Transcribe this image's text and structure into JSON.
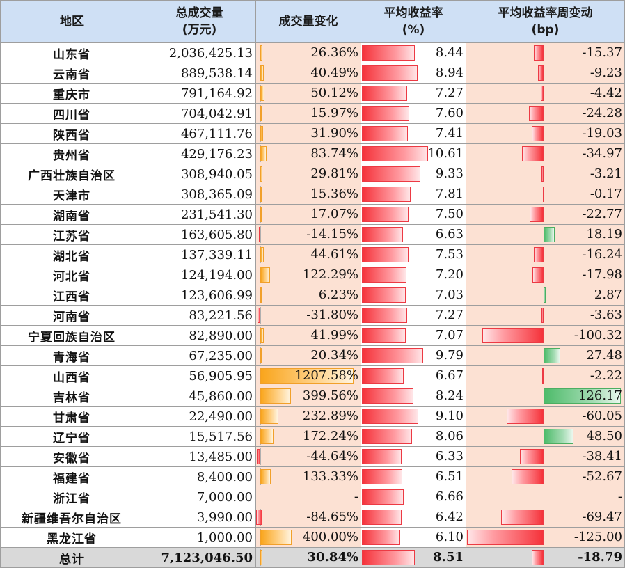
{
  "headers": {
    "region": "地区",
    "volume_line1": "总成交量",
    "volume_line2": "(万元)",
    "change": "成交量变化",
    "yield_line1": "平均收益率",
    "yield_line2": "(%)",
    "bp_line1": "平均收益率周变动",
    "bp_line2": "(bp)"
  },
  "colors": {
    "header_bg": "#cfe0f5",
    "row_bg": "#fce1d3",
    "orange_bar": "#f9a51c",
    "red_bar": "#f5323a",
    "green_bar": "#4dbb6a",
    "total_bg": "#d9d9d9"
  },
  "rows": [
    {
      "region": "山东省",
      "volume": "2,036,425.13",
      "change": "26.36%",
      "change_val": 26.36,
      "yield": "8.44",
      "yield_val": 8.44,
      "bp": "-15.37",
      "bp_val": -15.37
    },
    {
      "region": "云南省",
      "volume": "889,538.14",
      "change": "40.49%",
      "change_val": 40.49,
      "yield": "8.94",
      "yield_val": 8.94,
      "bp": "-9.23",
      "bp_val": -9.23
    },
    {
      "region": "重庆市",
      "volume": "791,164.92",
      "change": "50.12%",
      "change_val": 50.12,
      "yield": "7.27",
      "yield_val": 7.27,
      "bp": "-4.42",
      "bp_val": -4.42
    },
    {
      "region": "四川省",
      "volume": "704,042.91",
      "change": "15.97%",
      "change_val": 15.97,
      "yield": "7.60",
      "yield_val": 7.6,
      "bp": "-24.28",
      "bp_val": -24.28
    },
    {
      "region": "陕西省",
      "volume": "467,111.76",
      "change": "31.90%",
      "change_val": 31.9,
      "yield": "7.41",
      "yield_val": 7.41,
      "bp": "-19.03",
      "bp_val": -19.03
    },
    {
      "region": "贵州省",
      "volume": "429,176.23",
      "change": "83.74%",
      "change_val": 83.74,
      "yield": "10.61",
      "yield_val": 10.61,
      "bp": "-34.97",
      "bp_val": -34.97
    },
    {
      "region": "广西壮族自治区",
      "volume": "308,940.05",
      "change": "29.81%",
      "change_val": 29.81,
      "yield": "9.33",
      "yield_val": 9.33,
      "bp": "-3.21",
      "bp_val": -3.21
    },
    {
      "region": "天津市",
      "volume": "308,365.09",
      "change": "15.36%",
      "change_val": 15.36,
      "yield": "7.81",
      "yield_val": 7.81,
      "bp": "-0.17",
      "bp_val": -0.17
    },
    {
      "region": "湖南省",
      "volume": "231,541.30",
      "change": "17.07%",
      "change_val": 17.07,
      "yield": "7.50",
      "yield_val": 7.5,
      "bp": "-22.77",
      "bp_val": -22.77
    },
    {
      "region": "江苏省",
      "volume": "163,605.80",
      "change": "-14.15%",
      "change_val": -14.15,
      "yield": "6.63",
      "yield_val": 6.63,
      "bp": "18.19",
      "bp_val": 18.19
    },
    {
      "region": "湖北省",
      "volume": "137,339.11",
      "change": "44.61%",
      "change_val": 44.61,
      "yield": "7.53",
      "yield_val": 7.53,
      "bp": "-16.24",
      "bp_val": -16.24
    },
    {
      "region": "河北省",
      "volume": "124,194.00",
      "change": "122.29%",
      "change_val": 122.29,
      "yield": "7.20",
      "yield_val": 7.2,
      "bp": "-17.98",
      "bp_val": -17.98
    },
    {
      "region": "江西省",
      "volume": "123,606.99",
      "change": "6.23%",
      "change_val": 6.23,
      "yield": "7.03",
      "yield_val": 7.03,
      "bp": "2.87",
      "bp_val": 2.87
    },
    {
      "region": "河南省",
      "volume": "83,221.56",
      "change": "-31.80%",
      "change_val": -31.8,
      "yield": "7.27",
      "yield_val": 7.27,
      "bp": "-3.63",
      "bp_val": -3.63
    },
    {
      "region": "宁夏回族自治区",
      "volume": "82,890.00",
      "change": "41.99%",
      "change_val": 41.99,
      "yield": "7.07",
      "yield_val": 7.07,
      "bp": "-100.32",
      "bp_val": -100.32
    },
    {
      "region": "青海省",
      "volume": "67,235.00",
      "change": "20.34%",
      "change_val": 20.34,
      "yield": "9.79",
      "yield_val": 9.79,
      "bp": "27.48",
      "bp_val": 27.48
    },
    {
      "region": "山西省",
      "volume": "56,905.95",
      "change": "1207.58%",
      "change_val": 1207.58,
      "yield": "6.67",
      "yield_val": 6.67,
      "bp": "-2.22",
      "bp_val": -2.22
    },
    {
      "region": "吉林省",
      "volume": "45,860.00",
      "change": "399.56%",
      "change_val": 399.56,
      "yield": "8.24",
      "yield_val": 8.24,
      "bp": "126.17",
      "bp_val": 126.17
    },
    {
      "region": "甘肃省",
      "volume": "22,490.00",
      "change": "232.89%",
      "change_val": 232.89,
      "yield": "9.10",
      "yield_val": 9.1,
      "bp": "-60.05",
      "bp_val": -60.05
    },
    {
      "region": "辽宁省",
      "volume": "15,517.56",
      "change": "172.24%",
      "change_val": 172.24,
      "yield": "8.06",
      "yield_val": 8.06,
      "bp": "48.50",
      "bp_val": 48.5
    },
    {
      "region": "安徽省",
      "volume": "13,485.00",
      "change": "-44.64%",
      "change_val": -44.64,
      "yield": "6.33",
      "yield_val": 6.33,
      "bp": "-38.41",
      "bp_val": -38.41
    },
    {
      "region": "福建省",
      "volume": "8,400.00",
      "change": "133.33%",
      "change_val": 133.33,
      "yield": "6.51",
      "yield_val": 6.51,
      "bp": "-52.67",
      "bp_val": -52.67
    },
    {
      "region": "浙江省",
      "volume": "7,000.00",
      "change": "-",
      "change_val": null,
      "yield": "6.66",
      "yield_val": 6.66,
      "bp": "-",
      "bp_val": null
    },
    {
      "region": "新疆维吾尔自治区",
      "volume": "3,990.00",
      "change": "-84.65%",
      "change_val": -84.65,
      "yield": "6.42",
      "yield_val": 6.42,
      "bp": "-69.47",
      "bp_val": -69.47
    },
    {
      "region": "黑龙江省",
      "volume": "1,000.00",
      "change": "400.00%",
      "change_val": 400.0,
      "yield": "6.10",
      "yield_val": 6.1,
      "bp": "-125.00",
      "bp_val": -125.0
    }
  ],
  "total": {
    "region": "总计",
    "volume": "7,123,046.50",
    "change": "30.84%",
    "change_val": 30.84,
    "yield": "8.51",
    "yield_val": 8.51,
    "bp": "-18.79",
    "bp_val": -18.79
  }
}
